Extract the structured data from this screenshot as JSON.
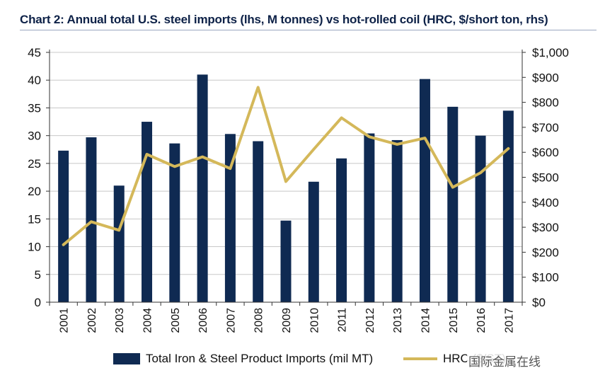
{
  "title": "Chart 2: Annual total U.S. steel imports (lhs, M tonnes) vs hot-rolled coil (HRC, $/short ton, rhs)",
  "colors": {
    "bars": "#0f2a52",
    "line": "#d4b85a",
    "grid": "#c8c8c8",
    "axis": "#333333"
  },
  "legend": {
    "bars_label": "Total Iron & Steel Product Imports (mil MT)",
    "line_label": "HRC ($/ST)",
    "placement": "bottom"
  },
  "watermark": "国际金属在线",
  "chart_data": {
    "type": "bar",
    "categories": [
      "2001",
      "2002",
      "2003",
      "2004",
      "2005",
      "2006",
      "2007",
      "2008",
      "2009",
      "2010",
      "2011",
      "2012",
      "2013",
      "2014",
      "2015",
      "2016",
      "2017"
    ],
    "series": [
      {
        "name": "Total Iron & Steel Product Imports (mil MT)",
        "type": "bar",
        "axis": "left",
        "values": [
          27.3,
          29.7,
          21.0,
          32.5,
          28.6,
          41.0,
          30.3,
          29.0,
          14.7,
          21.7,
          25.9,
          30.4,
          29.2,
          40.2,
          35.2,
          30.0,
          34.5
        ]
      },
      {
        "name": "HRC ($/ST)",
        "type": "line",
        "axis": "right",
        "values": [
          230,
          322,
          288,
          592,
          543,
          582,
          535,
          860,
          483,
          612,
          738,
          662,
          632,
          657,
          460,
          518,
          615
        ]
      }
    ],
    "yleft": {
      "lim": [
        0,
        45
      ],
      "ticks": [
        0,
        5,
        10,
        15,
        20,
        25,
        30,
        35,
        40,
        45
      ]
    },
    "yright": {
      "lim": [
        0,
        1000
      ],
      "ticks": [
        0,
        100,
        200,
        300,
        400,
        500,
        600,
        700,
        800,
        900,
        1000
      ],
      "tick_labels": [
        "$0",
        "$100",
        "$200",
        "$300",
        "$400",
        "$500",
        "$600",
        "$700",
        "$800",
        "$900",
        "$1,000"
      ]
    },
    "grid": true
  }
}
